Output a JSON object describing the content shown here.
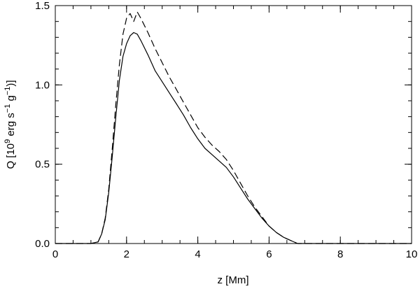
{
  "chart_data": {
    "type": "line",
    "xlabel": "z [Mm]",
    "ylabel_parts": [
      "Q [10",
      "9",
      " erg s",
      "−1",
      " g",
      "−1",
      ")]"
    ],
    "xlim": [
      0,
      10
    ],
    "ylim": [
      0,
      1.5
    ],
    "xticks": [
      0,
      2,
      4,
      6,
      8,
      10
    ],
    "xtick_labels": [
      "0",
      "2",
      "4",
      "6",
      "8",
      "10"
    ],
    "yticks": [
      0.0,
      0.5,
      1.0,
      1.5
    ],
    "ytick_labels": [
      "0.0",
      "0.5",
      "1.0",
      "1.5"
    ],
    "x_minor_step": 0.5,
    "y_minor_step": 0.1,
    "grid": false,
    "series": [
      {
        "style": "solid",
        "color": "#000000",
        "x": [
          0,
          1.0,
          1.2,
          1.3,
          1.4,
          1.5,
          1.6,
          1.7,
          1.8,
          1.9,
          2.0,
          2.1,
          2.2,
          2.3,
          2.4,
          2.6,
          2.8,
          3.0,
          3.2,
          3.4,
          3.6,
          3.8,
          4.0,
          4.2,
          4.4,
          4.6,
          4.8,
          5.0,
          5.2,
          5.4,
          5.6,
          5.8,
          6.0,
          6.2,
          6.4,
          6.6,
          6.8,
          7.0,
          8.0,
          10.0
        ],
        "y": [
          0,
          0,
          0.01,
          0.06,
          0.15,
          0.32,
          0.55,
          0.8,
          1.03,
          1.18,
          1.26,
          1.31,
          1.33,
          1.32,
          1.28,
          1.19,
          1.09,
          1.02,
          0.95,
          0.88,
          0.81,
          0.73,
          0.66,
          0.6,
          0.56,
          0.52,
          0.48,
          0.42,
          0.35,
          0.28,
          0.22,
          0.16,
          0.11,
          0.07,
          0.04,
          0.02,
          0.0,
          0.0,
          0.0,
          0.0
        ]
      },
      {
        "style": "dashed",
        "color": "#000000",
        "x": [
          0,
          1.0,
          1.2,
          1.3,
          1.4,
          1.5,
          1.6,
          1.7,
          1.8,
          1.9,
          2.0,
          2.1,
          2.2,
          2.3,
          2.4,
          2.6,
          2.8,
          3.0,
          3.2,
          3.4,
          3.6,
          3.8,
          4.0,
          4.2,
          4.4,
          4.6,
          4.8,
          5.0,
          5.2,
          5.4,
          5.6,
          5.8,
          6.0,
          6.2,
          6.4,
          6.6,
          6.8,
          7.0,
          8.0,
          10.0
        ],
        "y": [
          0,
          0,
          0.01,
          0.06,
          0.16,
          0.34,
          0.6,
          0.88,
          1.13,
          1.32,
          1.42,
          1.45,
          1.4,
          1.46,
          1.42,
          1.33,
          1.23,
          1.14,
          1.05,
          0.97,
          0.89,
          0.81,
          0.73,
          0.67,
          0.62,
          0.58,
          0.53,
          0.46,
          0.38,
          0.3,
          0.23,
          0.17,
          0.11,
          0.07,
          0.04,
          0.02,
          0.0,
          0.0,
          0.0,
          0.0
        ]
      }
    ]
  }
}
